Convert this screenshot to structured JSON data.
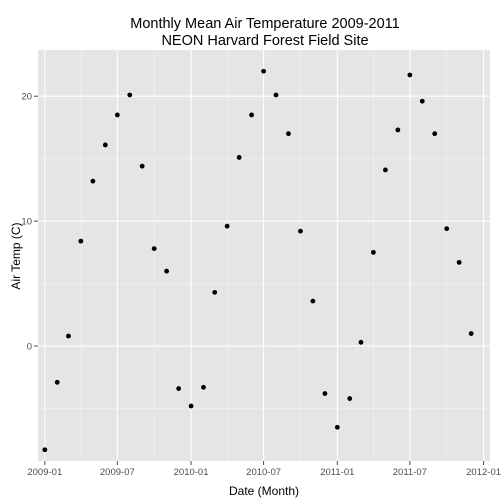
{
  "chart_data": {
    "type": "scatter",
    "title": "Monthly Mean Air Temperature 2009-2011",
    "subtitle": "NEON Harvard Forest Field Site",
    "xlabel": "Date (Month)",
    "ylabel": "Air Temp (C)",
    "x_ticks": [
      "2009-01",
      "2009-07",
      "2010-01",
      "2010-07",
      "2011-01",
      "2011-07",
      "2012-01"
    ],
    "y_ticks": [
      "0",
      "10",
      "20"
    ],
    "xlim": [
      "2008-12-15",
      "2012-01-17"
    ],
    "ylim": [
      -9.2,
      23.7
    ],
    "grid": true,
    "panel_background": "#e5e5e5",
    "grid_color": "#ffffff",
    "point_color": "#000000",
    "series": [
      {
        "x": [
          "2009-01",
          "2009-02",
          "2009-03",
          "2009-04",
          "2009-05",
          "2009-06",
          "2009-07",
          "2009-08",
          "2009-09",
          "2009-10",
          "2009-11",
          "2009-12",
          "2010-01",
          "2010-02",
          "2010-03",
          "2010-04",
          "2010-05",
          "2010-06",
          "2010-07",
          "2010-08",
          "2010-09",
          "2010-10",
          "2010-11",
          "2010-12",
          "2011-01",
          "2011-02",
          "2011-03",
          "2011-04",
          "2011-05",
          "2011-06",
          "2011-07",
          "2011-08",
          "2011-09",
          "2011-10",
          "2011-11",
          "2011-12"
        ],
        "y": [
          -8.3,
          -2.9,
          0.8,
          8.4,
          13.2,
          16.1,
          18.5,
          20.1,
          14.4,
          7.8,
          6.0,
          -3.4,
          -4.8,
          -3.3,
          4.3,
          9.6,
          15.1,
          18.5,
          22.0,
          20.1,
          17.0,
          9.2,
          3.6,
          -3.8,
          -6.5,
          -4.2,
          0.3,
          7.5,
          14.1,
          17.3,
          21.7,
          19.6,
          17.0,
          9.4,
          6.7,
          1.0
        ]
      }
    ]
  }
}
